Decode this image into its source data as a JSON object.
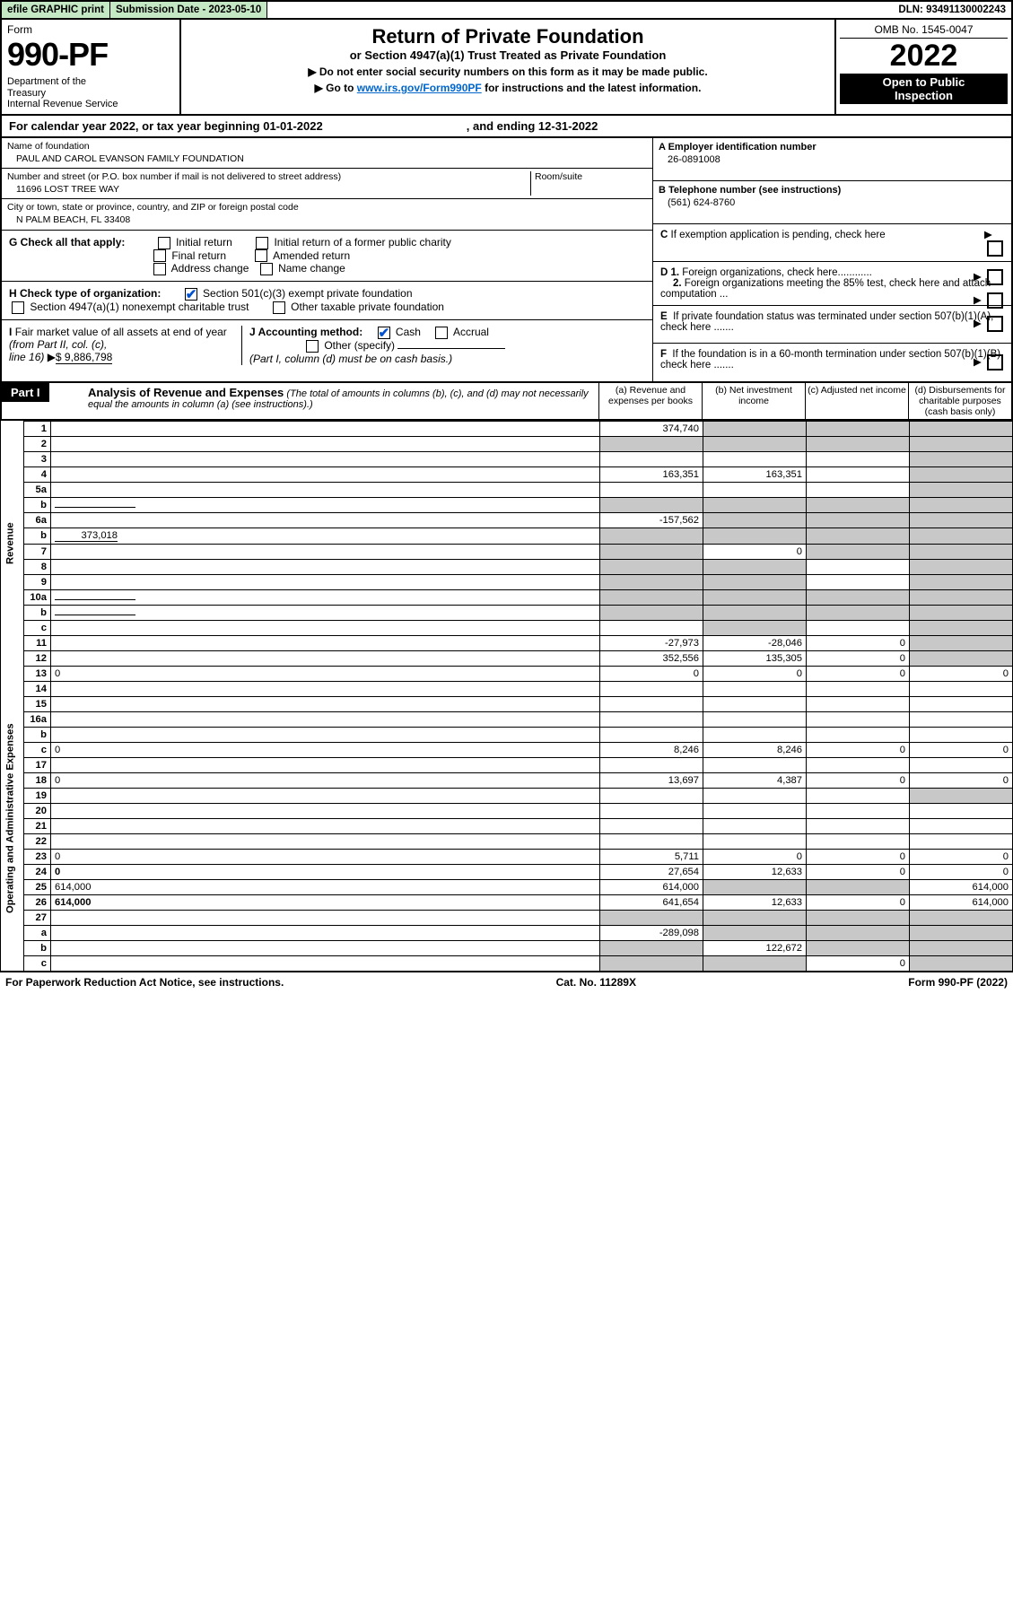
{
  "header_bar": {
    "efile": "efile GRAPHIC print",
    "submission": "Submission Date - 2023-05-10",
    "dln": "DLN: 93491130002243"
  },
  "top": {
    "form_label": "Form",
    "form_no": "990-PF",
    "dept": "Department of the Treasury\nInternal Revenue Service",
    "title": "Return of Private Foundation",
    "subtitle": "or Section 4947(a)(1) Trust Treated as Private Foundation",
    "note1": "▶ Do not enter social security numbers on this form as it may be made public.",
    "note2_pre": "▶ Go to ",
    "note2_link": "www.irs.gov/Form990PF",
    "note2_post": " for instructions and the latest information.",
    "omb": "OMB No. 1545-0047",
    "year": "2022",
    "open": "Open to Public Inspection"
  },
  "calendar": {
    "pre": "For calendar year 2022, or tax year beginning 01-01-2022",
    "mid": ", and ending 12-31-2022"
  },
  "foundation": {
    "name_label": "Name of foundation",
    "name": "PAUL AND CAROL EVANSON FAMILY FOUNDATION",
    "addr_label": "Number and street (or P.O. box number if mail is not delivered to street address)",
    "addr": "11696 LOST TREE WAY",
    "room_label": "Room/suite",
    "city_label": "City or town, state or province, country, and ZIP or foreign postal code",
    "city": "N PALM BEACH, FL  33408",
    "ein_label": "A Employer identification number",
    "ein": "26-0891008",
    "tel_label": "B Telephone number (see instructions)",
    "tel": "(561) 624-8760",
    "c_label": "C If exemption application is pending, check here",
    "d1": "D 1. Foreign organizations, check here............",
    "d2": "2. Foreign organizations meeting the 85% test, check here and attach computation ...",
    "e": "E  If private foundation status was terminated under section 507(b)(1)(A), check here .......",
    "f": "F  If the foundation is in a 60-month termination under section 507(b)(1)(B), check here .......",
    "g_label": "G Check all that apply:",
    "g_opts": [
      "Initial return",
      "Initial return of a former public charity",
      "Final return",
      "Amended return",
      "Address change",
      "Name change"
    ],
    "h_label": "H Check type of organization:",
    "h_opts": [
      "Section 501(c)(3) exempt private foundation",
      "Section 4947(a)(1) nonexempt charitable trust",
      "Other taxable private foundation"
    ],
    "i_label": "I Fair market value of all assets at end of year (from Part II, col. (c), line 16)",
    "i_val": "$  9,886,798",
    "j_label": "J Accounting method:",
    "j_opts": [
      "Cash",
      "Accrual",
      "Other (specify)"
    ],
    "j_note": "(Part I, column (d) must be on cash basis.)"
  },
  "part1": {
    "label": "Part I",
    "title": "Analysis of Revenue and Expenses",
    "title_note": "(The total of amounts in columns (b), (c), and (d) may not necessarily equal the amounts in column (a) (see instructions).)",
    "cols": {
      "a": "(a)   Revenue and expenses per books",
      "b": "(b)   Net investment income",
      "c": "(c)   Adjusted net income",
      "d": "(d)   Disbursements for charitable purposes (cash basis only)"
    }
  },
  "sections": {
    "revenue": "Revenue",
    "expenses": "Operating and Administrative Expenses"
  },
  "rows": [
    {
      "n": "1",
      "d": "",
      "a": "374,740",
      "b": "",
      "c": "",
      "grey": [
        "b",
        "c",
        "d"
      ]
    },
    {
      "n": "2",
      "d": "",
      "a": "",
      "b": "",
      "c": "",
      "grey": [
        "a",
        "b",
        "c",
        "d"
      ]
    },
    {
      "n": "3",
      "d": "",
      "a": "",
      "b": "",
      "c": "",
      "grey": [
        "d"
      ]
    },
    {
      "n": "4",
      "d": "",
      "a": "163,351",
      "b": "163,351",
      "c": "",
      "grey": [
        "d"
      ]
    },
    {
      "n": "5a",
      "d": "",
      "a": "",
      "b": "",
      "c": "",
      "grey": [
        "d"
      ]
    },
    {
      "n": "b",
      "d": "",
      "a": "",
      "b": "",
      "c": "",
      "grey": [
        "a",
        "b",
        "c",
        "d"
      ],
      "inset": true
    },
    {
      "n": "6a",
      "d": "",
      "a": "-157,562",
      "b": "",
      "c": "",
      "grey": [
        "b",
        "c",
        "d"
      ]
    },
    {
      "n": "b",
      "d": "",
      "a": "",
      "b": "",
      "c": "",
      "grey": [
        "a",
        "b",
        "c",
        "d"
      ],
      "inset": true,
      "inline_val": "373,018"
    },
    {
      "n": "7",
      "d": "",
      "a": "",
      "b": "0",
      "c": "",
      "grey": [
        "a",
        "c",
        "d"
      ]
    },
    {
      "n": "8",
      "d": "",
      "a": "",
      "b": "",
      "c": "",
      "grey": [
        "a",
        "b",
        "d"
      ]
    },
    {
      "n": "9",
      "d": "",
      "a": "",
      "b": "",
      "c": "",
      "grey": [
        "a",
        "b",
        "d"
      ]
    },
    {
      "n": "10a",
      "d": "",
      "a": "",
      "b": "",
      "c": "",
      "grey": [
        "a",
        "b",
        "c",
        "d"
      ],
      "inset": true
    },
    {
      "n": "b",
      "d": "",
      "a": "",
      "b": "",
      "c": "",
      "grey": [
        "a",
        "b",
        "c",
        "d"
      ],
      "inset": true
    },
    {
      "n": "c",
      "d": "",
      "a": "",
      "b": "",
      "c": "",
      "grey": [
        "b",
        "d"
      ]
    },
    {
      "n": "11",
      "d": "",
      "a": "-27,973",
      "b": "-28,046",
      "c": "0",
      "grey": [
        "d"
      ]
    },
    {
      "n": "12",
      "d": "",
      "a": "352,556",
      "b": "135,305",
      "c": "0",
      "grey": [
        "d"
      ],
      "bold": true
    }
  ],
  "exp_rows": [
    {
      "n": "13",
      "d": "0",
      "a": "0",
      "b": "0",
      "c": "0"
    },
    {
      "n": "14",
      "d": "",
      "a": "",
      "b": "",
      "c": ""
    },
    {
      "n": "15",
      "d": "",
      "a": "",
      "b": "",
      "c": ""
    },
    {
      "n": "16a",
      "d": "",
      "a": "",
      "b": "",
      "c": ""
    },
    {
      "n": "b",
      "d": "",
      "a": "",
      "b": "",
      "c": ""
    },
    {
      "n": "c",
      "d": "0",
      "a": "8,246",
      "b": "8,246",
      "c": "0"
    },
    {
      "n": "17",
      "d": "",
      "a": "",
      "b": "",
      "c": ""
    },
    {
      "n": "18",
      "d": "0",
      "a": "13,697",
      "b": "4,387",
      "c": "0"
    },
    {
      "n": "19",
      "d": "",
      "a": "",
      "b": "",
      "c": "",
      "grey": [
        "d"
      ]
    },
    {
      "n": "20",
      "d": "",
      "a": "",
      "b": "",
      "c": ""
    },
    {
      "n": "21",
      "d": "",
      "a": "",
      "b": "",
      "c": ""
    },
    {
      "n": "22",
      "d": "",
      "a": "",
      "b": "",
      "c": ""
    },
    {
      "n": "23",
      "d": "0",
      "a": "5,711",
      "b": "0",
      "c": "0"
    },
    {
      "n": "24",
      "d": "0",
      "a": "27,654",
      "b": "12,633",
      "c": "0",
      "bold": true
    },
    {
      "n": "25",
      "d": "614,000",
      "a": "614,000",
      "b": "",
      "c": "",
      "grey": [
        "b",
        "c"
      ]
    },
    {
      "n": "26",
      "d": "614,000",
      "a": "641,654",
      "b": "12,633",
      "c": "0",
      "bold": true
    },
    {
      "n": "27",
      "d": "",
      "a": "",
      "b": "",
      "c": "",
      "grey": [
        "a",
        "b",
        "c",
        "d"
      ]
    },
    {
      "n": "a",
      "d": "",
      "a": "-289,098",
      "b": "",
      "c": "",
      "grey": [
        "b",
        "c",
        "d"
      ],
      "bold": true
    },
    {
      "n": "b",
      "d": "",
      "a": "",
      "b": "122,672",
      "c": "",
      "grey": [
        "a",
        "c",
        "d"
      ],
      "bold": true
    },
    {
      "n": "c",
      "d": "",
      "a": "",
      "b": "",
      "c": "0",
      "grey": [
        "a",
        "b",
        "d"
      ],
      "bold": true
    }
  ],
  "footer": {
    "left": "For Paperwork Reduction Act Notice, see instructions.",
    "mid": "Cat. No. 11289X",
    "right": "Form 990-PF (2022)"
  },
  "colors": {
    "green_bg": "#c4e8c4",
    "grey_bg": "#c8c8c8",
    "link": "#0066cc",
    "check": "#0050d0"
  }
}
